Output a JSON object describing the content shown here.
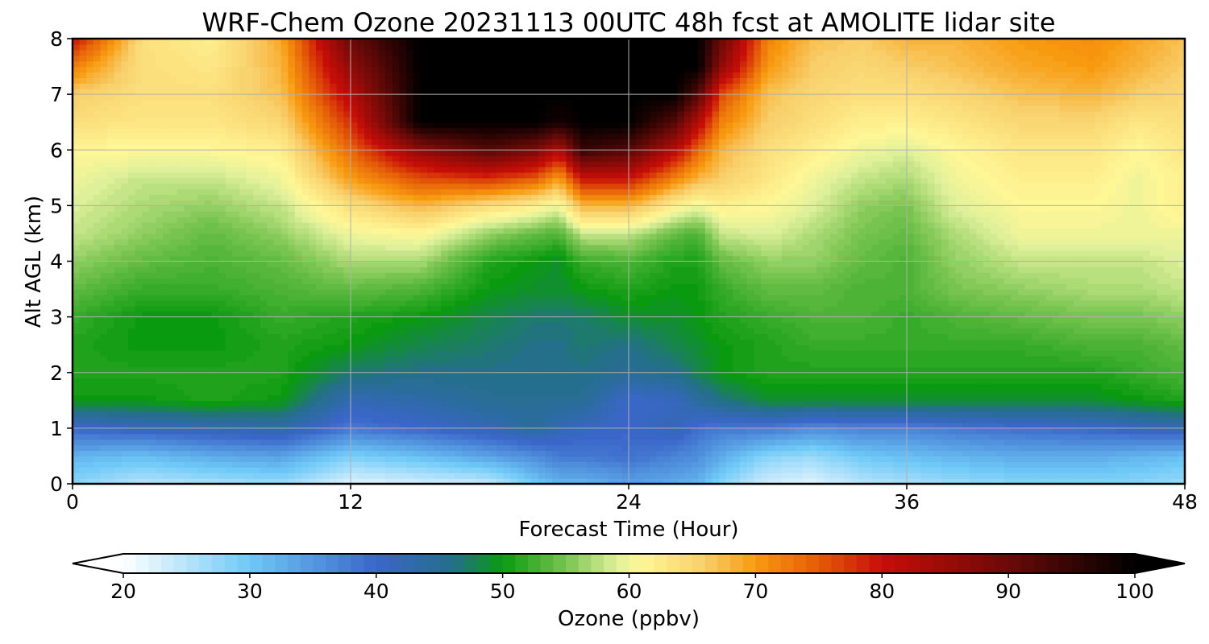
{
  "chart_data": {
    "type": "heatmap",
    "title": "WRF-Chem Ozone  20231113 00UTC 48h fcst at AMOLITE lidar site",
    "xlabel": "Forecast Time (Hour)",
    "ylabel": "Alt AGL (km)",
    "xlim": [
      0,
      48
    ],
    "ylim": [
      0,
      8
    ],
    "xticks": [
      "0",
      "12",
      "24",
      "36",
      "48"
    ],
    "yticks": [
      "0",
      "1",
      "2",
      "3",
      "4",
      "5",
      "6",
      "7",
      "8"
    ],
    "grid": true,
    "colorbar": {
      "label": "Ozone  (ppbv)",
      "range": [
        20,
        100
      ],
      "extend": "both",
      "ticks": [
        "20",
        "30",
        "40",
        "50",
        "60",
        "70",
        "80",
        "90",
        "100"
      ],
      "colors": [
        {
          "value": 20,
          "color": "#ffffff"
        },
        {
          "value": 30,
          "color": "#6ec9f7"
        },
        {
          "value": 40,
          "color": "#3a66c9"
        },
        {
          "value": 46,
          "color": "#246f8a"
        },
        {
          "value": 50,
          "color": "#0a9a10"
        },
        {
          "value": 55,
          "color": "#78c450"
        },
        {
          "value": 59,
          "color": "#dff09a"
        },
        {
          "value": 61,
          "color": "#fff796"
        },
        {
          "value": 66,
          "color": "#f8cf6a"
        },
        {
          "value": 70,
          "color": "#f89a10"
        },
        {
          "value": 75,
          "color": "#e45c08"
        },
        {
          "value": 80,
          "color": "#c80d08"
        },
        {
          "value": 90,
          "color": "#6a0a08"
        },
        {
          "value": 100,
          "color": "#000000"
        }
      ]
    },
    "x": [
      0,
      3,
      6,
      9,
      12,
      15,
      18,
      20,
      21,
      22,
      24,
      26,
      27,
      28,
      30,
      32,
      34,
      36,
      38,
      41,
      44,
      46,
      48
    ],
    "y": [
      0,
      0.5,
      1,
      1.5,
      2,
      2.5,
      3,
      3.5,
      4,
      4.5,
      5,
      5.5,
      6,
      6.5,
      7,
      7.5,
      8
    ],
    "z": [
      [
        28,
        25,
        26,
        27,
        22,
        23,
        24,
        30,
        32,
        32,
        34,
        33,
        32,
        28,
        23,
        22,
        25,
        26,
        27,
        28,
        28,
        28,
        27
      ],
      [
        32,
        31,
        33,
        34,
        29,
        31,
        34,
        36,
        38,
        38,
        39,
        37,
        36,
        33,
        28,
        27,
        30,
        31,
        32,
        33,
        33,
        32,
        31
      ],
      [
        40,
        41,
        42,
        43,
        38,
        40,
        42,
        44,
        42,
        41,
        40,
        42,
        39,
        38,
        38,
        36,
        37,
        37,
        38,
        39,
        40,
        41,
        42
      ],
      [
        50,
        50,
        51,
        50,
        42,
        43,
        45,
        45,
        45,
        45,
        40,
        41,
        44,
        46,
        49,
        49,
        49,
        49,
        49,
        49,
        49,
        50,
        51
      ],
      [
        51,
        51,
        51,
        51,
        47,
        46,
        46,
        46,
        46,
        46,
        45,
        46,
        48,
        50,
        51,
        51,
        51,
        51,
        51,
        51,
        51,
        52,
        53
      ],
      [
        51,
        50,
        50,
        51,
        50,
        48,
        47,
        46,
        46,
        47,
        46,
        48,
        49,
        50,
        51,
        52,
        52,
        52,
        52,
        52,
        53,
        53,
        54
      ],
      [
        52,
        50,
        50,
        52,
        51,
        50,
        48,
        47,
        47,
        47,
        49,
        49,
        50,
        51,
        52,
        53,
        53,
        52,
        53,
        54,
        55,
        55,
        56
      ],
      [
        54,
        52,
        52,
        53,
        54,
        53,
        50,
        49,
        49,
        50,
        51,
        50,
        50,
        52,
        54,
        54,
        53,
        53,
        55,
        56,
        57,
        57,
        58
      ],
      [
        56,
        54,
        53,
        54,
        57,
        57,
        51,
        50,
        49,
        52,
        53,
        51,
        51,
        54,
        56,
        56,
        54,
        53,
        56,
        58,
        58,
        58,
        59
      ],
      [
        58,
        56,
        54,
        56,
        60,
        61,
        56,
        54,
        53,
        58,
        58,
        54,
        53,
        58,
        59,
        57,
        55,
        54,
        57,
        60,
        60,
        60,
        60
      ],
      [
        59,
        57,
        56,
        58,
        64,
        68,
        64,
        62,
        60,
        68,
        68,
        62,
        60,
        62,
        61,
        59,
        56,
        55,
        59,
        61,
        61,
        60,
        62
      ],
      [
        60,
        58,
        58,
        60,
        70,
        76,
        78,
        75,
        70,
        80,
        80,
        72,
        68,
        66,
        63,
        60,
        58,
        57,
        60,
        62,
        62,
        60,
        62
      ],
      [
        61,
        61,
        61,
        62,
        74,
        86,
        92,
        88,
        82,
        95,
        92,
        82,
        74,
        68,
        64,
        62,
        60,
        59,
        61,
        63,
        63,
        61,
        63
      ],
      [
        64,
        63,
        63,
        65,
        78,
        100,
        100,
        100,
        98,
        100,
        100,
        92,
        82,
        72,
        66,
        64,
        62,
        62,
        63,
        65,
        65,
        63,
        64
      ],
      [
        66,
        64,
        64,
        67,
        82,
        100,
        100,
        100,
        100,
        100,
        100,
        100,
        92,
        76,
        67,
        65,
        64,
        64,
        65,
        67,
        68,
        66,
        65
      ],
      [
        72,
        64,
        63,
        68,
        86,
        100,
        100,
        100,
        100,
        100,
        100,
        100,
        100,
        86,
        70,
        66,
        65,
        66,
        67,
        69,
        70,
        68,
        66
      ],
      [
        80,
        64,
        62,
        69,
        90,
        100,
        100,
        100,
        100,
        100,
        100,
        100,
        100,
        90,
        72,
        67,
        66,
        68,
        68,
        70,
        71,
        69,
        67
      ]
    ]
  }
}
